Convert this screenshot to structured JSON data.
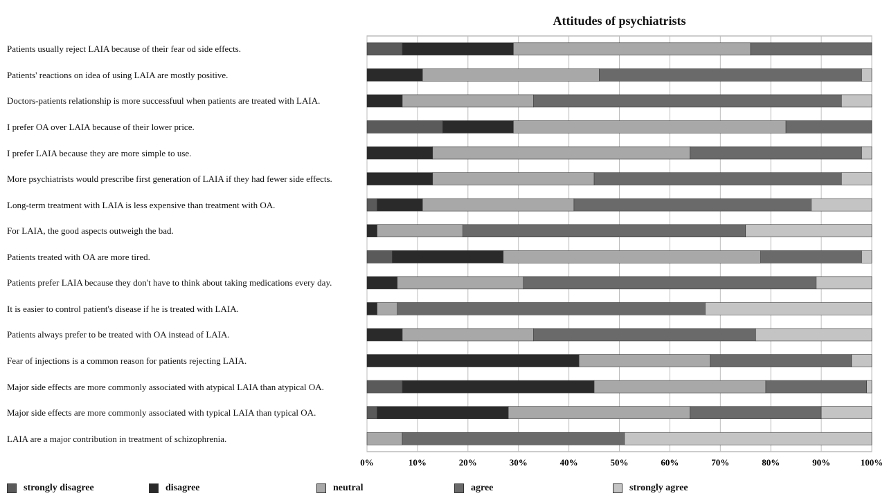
{
  "chart_data": {
    "type": "bar",
    "orientation": "horizontal",
    "stacked": "percent",
    "title": "Attitudes of psychiatrists",
    "categories": [
      "Patients usually reject LAIA because of their fear od side effects.",
      "Patients' reactions on idea of using LAIA are mostly positive.",
      "Doctors-patients relationship is more successfuul when patients are treated with LAIA.",
      "I prefer OA over LAIA because of their lower price.",
      "I prefer LAIA because they are more simple to use.",
      "More psychiatrists would prescribe first generation of LAIA if they had fewer side effects.",
      "Long-term treatment with LAIA is less expensive than treatment with OA.",
      "For LAIA, the good aspects outweigh the bad.",
      "Patients treated with OA are more tired.",
      "Patients prefer LAIA because they don't have to think about taking medications every day.",
      "It is easier to control patient's disease if he is treated with LAIA.",
      "Patients always prefer to be treated with OA instead of LAIA.",
      "Fear of injections is a common reason for patients rejecting LAIA.",
      "Major side effects are more commonly associated with atypical LAIA than atypical OA.",
      "Major side effects are more commonly associated with typical LAIA than typical OA.",
      "LAIA are a major contribution in treatment of schizophrenia."
    ],
    "series": [
      {
        "name": "strongly disagree",
        "color": "#5a5a5a",
        "values": [
          7,
          0,
          0,
          15,
          0,
          0,
          2,
          0,
          5,
          0,
          0,
          0,
          0,
          7,
          2,
          0
        ]
      },
      {
        "name": "disagree",
        "color": "#2a2a2a",
        "values": [
          22,
          11,
          7,
          14,
          13,
          13,
          9,
          2,
          22,
          6,
          2,
          7,
          42,
          38,
          26,
          0
        ]
      },
      {
        "name": "neutral",
        "color": "#a8a8a8",
        "values": [
          47,
          35,
          26,
          54,
          51,
          32,
          30,
          17,
          51,
          25,
          4,
          26,
          26,
          34,
          36,
          7
        ]
      },
      {
        "name": "agree",
        "color": "#6a6a6a",
        "values": [
          24,
          52,
          61,
          17,
          34,
          49,
          47,
          56,
          20,
          58,
          61,
          44,
          28,
          20,
          26,
          44
        ]
      },
      {
        "name": "strongly agree",
        "color": "#c4c4c4",
        "values": [
          0,
          2,
          6,
          0,
          2,
          6,
          12,
          25,
          2,
          11,
          33,
          23,
          4,
          1,
          10,
          49
        ]
      }
    ],
    "x_ticks": [
      "0%",
      "10%",
      "20%",
      "30%",
      "40%",
      "50%",
      "60%",
      "70%",
      "80%",
      "90%",
      "100%"
    ],
    "xlim": [
      0,
      100
    ],
    "grid": true,
    "legend_position": "bottom"
  }
}
